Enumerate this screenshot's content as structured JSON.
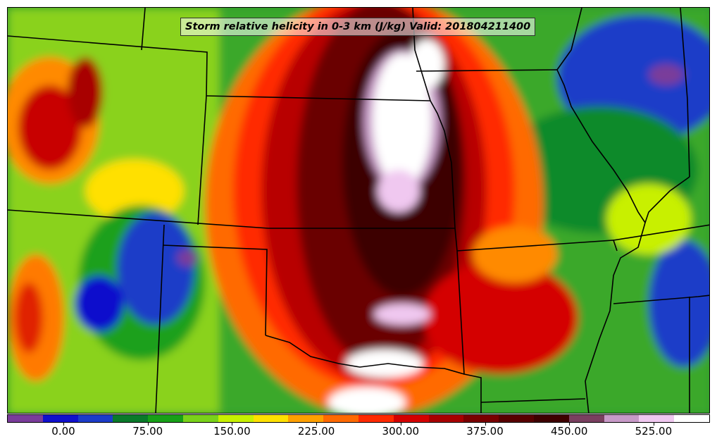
{
  "map": {
    "title": "Storm relative helicity in 0-3 km (J/kg) Valid: 201804211400"
  },
  "colorbar": {
    "colors": [
      "#7a3c9a",
      "#1010cc",
      "#1c3cc8",
      "#0a7a2a",
      "#18a018",
      "#7ad21a",
      "#c8f000",
      "#ffe000",
      "#ffa000",
      "#ff6a00",
      "#ff2a00",
      "#d40000",
      "#a80000",
      "#7a0000",
      "#580000",
      "#3e0000",
      "#7a4060",
      "#c89ac8",
      "#f0c8f0",
      "#ffffff"
    ],
    "ticks": [
      "0.00",
      "75.00",
      "150.00",
      "225.00",
      "300.00",
      "375.00",
      "450.00",
      "525.00"
    ]
  }
}
